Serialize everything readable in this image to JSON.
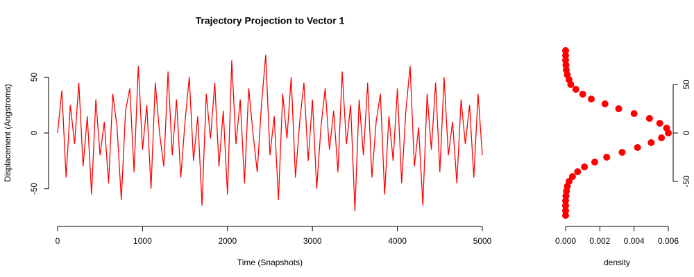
{
  "chart_data": [
    {
      "type": "line",
      "title": "Trajectory Projection to Vector 1",
      "x_label": "Time (Snapshots)",
      "y_label": "Displacement (Angstroms)",
      "x": [
        0,
        50,
        100,
        150,
        200,
        250,
        300,
        350,
        400,
        450,
        500,
        550,
        600,
        650,
        700,
        750,
        800,
        850,
        900,
        950,
        1000,
        1050,
        1100,
        1150,
        1200,
        1250,
        1300,
        1350,
        1400,
        1450,
        1500,
        1550,
        1600,
        1650,
        1700,
        1750,
        1800,
        1850,
        1900,
        1950,
        2000,
        2050,
        2100,
        2150,
        2200,
        2250,
        2300,
        2350,
        2400,
        2450,
        2500,
        2550,
        2600,
        2650,
        2700,
        2750,
        2800,
        2850,
        2900,
        2950,
        3000,
        3050,
        3100,
        3150,
        3200,
        3250,
        3300,
        3350,
        3400,
        3450,
        3500,
        3550,
        3600,
        3650,
        3700,
        3750,
        3800,
        3850,
        3900,
        3950,
        4000,
        4050,
        4100,
        4150,
        4200,
        4250,
        4300,
        4350,
        4400,
        4450,
        4500,
        4550,
        4600,
        4650,
        4700,
        4750,
        4800,
        4850,
        4900,
        4950,
        5000
      ],
      "series": [
        {
          "name": "projection",
          "color": "#ff0000",
          "values": [
            0,
            38,
            -40,
            25,
            -10,
            45,
            -30,
            15,
            -55,
            30,
            -20,
            10,
            -45,
            35,
            5,
            -60,
            20,
            40,
            -35,
            60,
            -15,
            25,
            -50,
            45,
            0,
            -30,
            55,
            -20,
            30,
            -40,
            10,
            50,
            -25,
            15,
            -65,
            35,
            -5,
            45,
            -30,
            20,
            -55,
            65,
            -10,
            30,
            -45,
            40,
            0,
            -35,
            25,
            70,
            -20,
            15,
            -60,
            35,
            -5,
            50,
            -40,
            10,
            45,
            -25,
            30,
            -50,
            5,
            40,
            -15,
            20,
            -35,
            55,
            -10,
            25,
            -70,
            30,
            -20,
            45,
            -40,
            10,
            35,
            -55,
            15,
            -25,
            40,
            -45,
            20,
            60,
            -30,
            5,
            -65,
            35,
            -15,
            45,
            -35,
            50,
            -20,
            10,
            -45,
            30,
            -10,
            25,
            -40,
            35,
            -20
          ]
        }
      ],
      "xlim": [
        0,
        5000
      ],
      "xticks": [
        0,
        1000,
        2000,
        3000,
        4000,
        5000
      ],
      "ylim": [
        -80,
        80
      ],
      "yticks": [
        -50,
        0,
        50
      ]
    },
    {
      "type": "scatter",
      "x_label": "density",
      "x": [
        0,
        0,
        0,
        0,
        2e-05,
        5e-05,
        0.0001,
        0.0002,
        0.0004,
        0.0007,
        0.0011,
        0.0017,
        0.0024,
        0.0033,
        0.0042,
        0.005,
        0.0056,
        0.006,
        0.0059,
        0.0055,
        0.0049,
        0.004,
        0.0031,
        0.0023,
        0.0015,
        0.001,
        0.0006,
        0.0003,
        0.0002,
        0.0001,
        4e-05,
        2e-05,
        0,
        0,
        0
      ],
      "series": [
        {
          "name": "density",
          "color": "#ff0000",
          "values": [
            -85,
            -80,
            -75,
            -70,
            -65,
            -60,
            -55,
            -50,
            -45,
            -40,
            -35,
            -30,
            -25,
            -20,
            -15,
            -10,
            -5,
            0,
            5,
            10,
            15,
            20,
            25,
            30,
            35,
            40,
            45,
            50,
            55,
            60,
            65,
            70,
            75,
            80,
            85
          ]
        }
      ],
      "xlim": [
        0,
        0.006
      ],
      "xticks": [
        {
          "value": 0,
          "label": "0.000"
        },
        {
          "value": 0.002,
          "label": "0.002"
        },
        {
          "value": 0.004,
          "label": "0.004"
        },
        {
          "value": 0.006,
          "label": "0.006"
        }
      ],
      "ylim": [
        -90,
        90
      ],
      "yticks": [
        -50,
        0,
        50
      ]
    }
  ]
}
